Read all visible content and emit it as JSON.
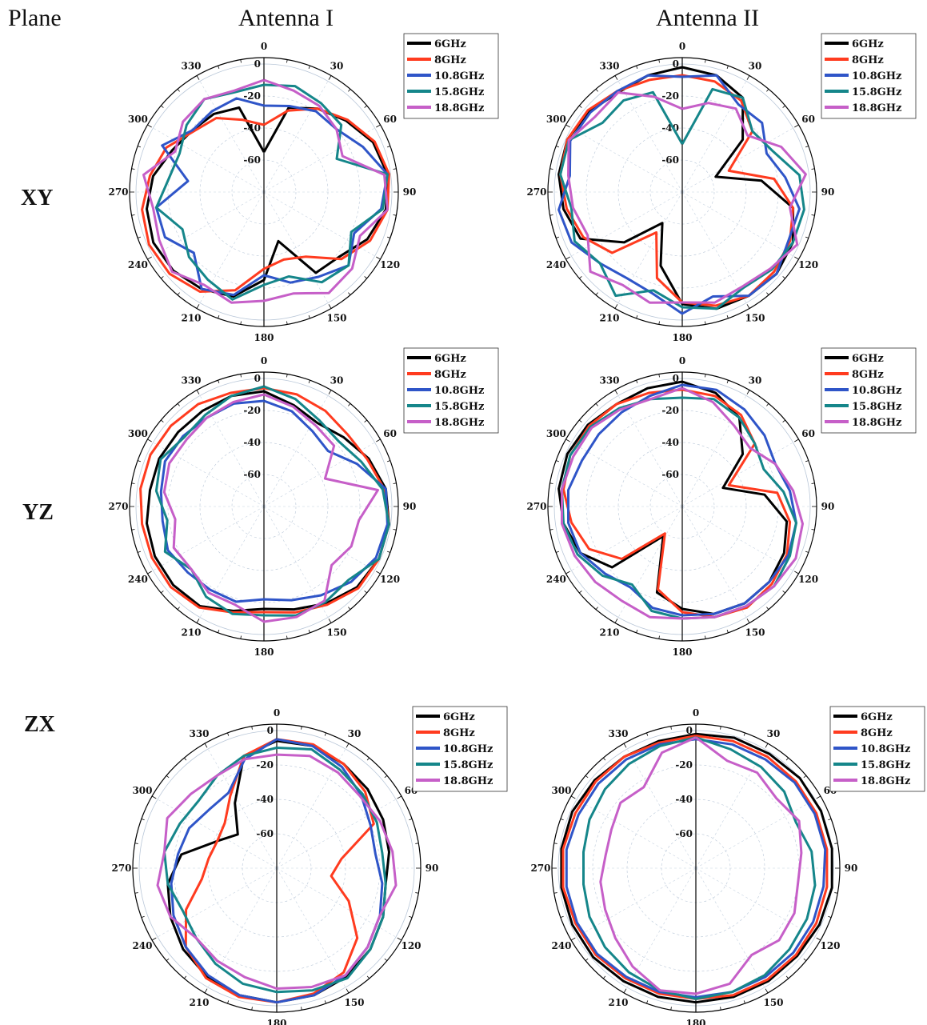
{
  "header": {
    "plane": "Plane",
    "antenna1": "Antenna I",
    "antenna2": "Antenna II"
  },
  "rows": [
    "XY",
    "YZ",
    "ZX"
  ],
  "legend": [
    "6GHz",
    "8GHz",
    "10.8GHz",
    "15.8GHz",
    "18.8GHz"
  ],
  "colors": [
    "#000000",
    "#ff3b1f",
    "#2f55c8",
    "#15868a",
    "#c65fc8"
  ],
  "chart_data": [
    {
      "type": "polar",
      "plane": "XY",
      "antenna": "Antenna I",
      "angle_ticks": [
        0,
        30,
        60,
        90,
        120,
        150,
        180,
        210,
        240,
        270,
        300,
        330
      ],
      "radial_ticks": [
        0,
        -20,
        -40,
        -60
      ],
      "rlim": [
        -60,
        0
      ],
      "series": [
        {
          "name": "6GHz",
          "values": [
            -55,
            -25,
            -18,
            -12,
            -5,
            -2,
            -3,
            -9,
            -18,
            -20,
            -48,
            -25,
            -12,
            -8,
            -5,
            -4,
            -6,
            -10,
            -17,
            -21,
            -22,
            -25
          ]
        },
        {
          "name": "8GHz",
          "values": [
            -38,
            -27,
            -18,
            -11,
            -4,
            -1,
            -2,
            -7,
            -16,
            -32,
            -36,
            -32,
            -16,
            -6,
            -2,
            -1,
            -3,
            -8,
            -13,
            -22,
            -25,
            -33
          ]
        },
        {
          "name": "10.8GHz",
          "values": [
            -26,
            -24,
            -20,
            -20,
            -12,
            -2,
            -6,
            -18,
            -10,
            -17,
            -21,
            -28,
            -13,
            -8,
            -22,
            -12,
            -12,
            -32,
            -10,
            -21,
            -20,
            -19
          ]
        },
        {
          "name": "15.8GHz",
          "values": [
            -13,
            -11,
            -14,
            -16,
            -30,
            -2,
            -5,
            -20,
            -10,
            -13,
            -25,
            -22,
            -10,
            -15,
            -18,
            -24,
            -12,
            -20,
            -22,
            -16,
            -11,
            -15
          ]
        },
        {
          "name": "18.8GHz",
          "values": [
            -10,
            -14,
            -16,
            -20,
            -26,
            -4,
            -2,
            -14,
            -7,
            -5,
            -14,
            -12,
            -8,
            -11,
            -4,
            -8,
            -10,
            -4,
            -19,
            -13,
            -11,
            -14
          ]
        }
      ]
    },
    {
      "type": "polar",
      "plane": "XY",
      "antenna": "Antenna II",
      "angle_ticks": [
        0,
        30,
        60,
        90,
        120,
        150,
        180,
        210,
        240,
        270,
        300,
        330
      ],
      "radial_ticks": [
        0,
        -20,
        -40,
        -60
      ],
      "rlim": [
        -60,
        0
      ],
      "series": [
        {
          "name": "6GHz",
          "values": [
            -2,
            -4,
            -10,
            -30,
            -57,
            -30,
            -10,
            -4,
            -2,
            -3,
            -4,
            -10,
            -32,
            -57,
            -32,
            -10,
            -5,
            -2,
            -1,
            -3,
            -6,
            -4
          ]
        },
        {
          "name": "8GHz",
          "values": [
            -7,
            -8,
            -12,
            -22,
            -48,
            -22,
            -10,
            -6,
            -4,
            -3,
            -6,
            -11,
            -24,
            -50,
            -22,
            -12,
            -7,
            -3,
            -1,
            -2,
            -5,
            -7
          ]
        },
        {
          "name": "10.8GHz",
          "values": [
            -8,
            -4,
            -15,
            -14,
            -22,
            -15,
            -6,
            -7,
            -2,
            -3,
            -12,
            -4,
            -14,
            -16,
            -12,
            -4,
            -2,
            -9,
            -3,
            -4,
            -5,
            -4
          ]
        },
        {
          "name": "15.8GHz",
          "values": [
            -50,
            -13,
            -10,
            -22,
            -18,
            -6,
            -3,
            -4,
            -6,
            -9,
            -4,
            -8,
            -16,
            -3,
            -12,
            -6,
            -10,
            -3,
            -2,
            -14,
            -12,
            -15
          ]
        },
        {
          "name": "18.8GHz",
          "values": [
            -28,
            -22,
            -18,
            -26,
            -12,
            -2,
            -12,
            -1,
            -7,
            -10,
            -8,
            -11,
            -8,
            -11,
            -4,
            -15,
            -11,
            -8,
            -2,
            -8,
            -6,
            -18
          ]
        }
      ]
    },
    {
      "type": "polar",
      "plane": "YZ",
      "antenna": "Antenna I",
      "angle_ticks": [
        0,
        30,
        60,
        90,
        120,
        150,
        180,
        210,
        240,
        270,
        300,
        330
      ],
      "radial_ticks": [
        0,
        -20,
        -40,
        -60
      ],
      "rlim": [
        -60,
        0
      ],
      "series": [
        {
          "name": "6GHz",
          "values": [
            -8,
            -14,
            -18,
            -14,
            -8,
            -3,
            -1,
            -1,
            -3,
            -8,
            -13,
            -16,
            -12,
            -6,
            -5,
            -5,
            -6,
            -8,
            -8,
            -9,
            -9,
            -8
          ]
        },
        {
          "name": "8GHz",
          "values": [
            -6,
            -7,
            -9,
            -11,
            -9,
            -4,
            -1,
            -1,
            -2,
            -7,
            -11,
            -14,
            -11,
            -5,
            -3,
            -3,
            -3,
            -2,
            -2,
            -3,
            -4,
            -6
          ]
        },
        {
          "name": "10.8GHz",
          "values": [
            -14,
            -18,
            -24,
            -27,
            -16,
            -3,
            -2,
            -3,
            -8,
            -14,
            -19,
            -22,
            -18,
            -18,
            -17,
            -14,
            -16,
            -15,
            -12,
            -13,
            -14,
            -13
          ]
        },
        {
          "name": "15.8GHz",
          "values": [
            -5,
            -10,
            -16,
            -18,
            -13,
            -5,
            -1,
            -1,
            -10,
            -9,
            -9,
            -12,
            -10,
            -13,
            -20,
            -12,
            -19,
            -12,
            -9,
            -14,
            -12,
            -8
          ]
        },
        {
          "name": "18.8GHz",
          "values": [
            -10,
            -15,
            -20,
            -22,
            -38,
            -8,
            -20,
            -20,
            -24,
            -10,
            -8,
            -8,
            -16,
            -16,
            -20,
            -18,
            -24,
            -17,
            -15,
            -16,
            -14,
            -12
          ]
        }
      ]
    },
    {
      "type": "polar",
      "plane": "YZ",
      "antenna": "Antenna II",
      "angle_ticks": [
        0,
        30,
        60,
        90,
        120,
        150,
        180,
        210,
        240,
        270,
        300,
        330
      ],
      "radial_ticks": [
        0,
        -20,
        -40,
        -60
      ],
      "rlim": [
        -60,
        0
      ],
      "series": [
        {
          "name": "6GHz",
          "values": [
            -2,
            -6,
            -14,
            -30,
            -52,
            -28,
            -14,
            -10,
            -8,
            -8,
            -10,
            -16,
            -24,
            -58,
            -22,
            -10,
            -5,
            -2,
            -1,
            -2,
            -4,
            -3
          ]
        },
        {
          "name": "8GHz",
          "values": [
            -7,
            -8,
            -12,
            -20,
            -48,
            -20,
            -12,
            -8,
            -6,
            -5,
            -8,
            -14,
            -26,
            -60,
            -30,
            -16,
            -10,
            -5,
            -3,
            -3,
            -4,
            -6
          ]
        },
        {
          "name": "10.8GHz",
          "values": [
            -4,
            -4,
            -8,
            -12,
            -16,
            -12,
            -8,
            -7,
            -8,
            -8,
            -10,
            -12,
            -14,
            -20,
            -16,
            -10,
            -8,
            -8,
            -11,
            -11,
            -10,
            -8
          ]
        },
        {
          "name": "15.8GHz",
          "values": [
            -12,
            -10,
            -14,
            -20,
            -24,
            -16,
            -8,
            -6,
            -4,
            -6,
            -8,
            -10,
            -12,
            -22,
            -14,
            -8,
            -5,
            -4,
            -3,
            -4,
            -7,
            -10
          ]
        },
        {
          "name": "18.8GHz",
          "values": [
            -6,
            -12,
            -20,
            -24,
            -16,
            -10,
            -4,
            -2,
            -4,
            -6,
            -8,
            -10,
            -8,
            -10,
            -8,
            -6,
            -4,
            -4,
            -5,
            -5,
            -8,
            -10
          ]
        }
      ]
    },
    {
      "type": "polar",
      "plane": "ZX",
      "antenna": "Antenna I",
      "angle_ticks": [
        0,
        30,
        60,
        90,
        120,
        150,
        180,
        210,
        240,
        270,
        300,
        330
      ],
      "radial_ticks": [
        0,
        -20,
        -40,
        -60
      ],
      "rlim": [
        -60,
        0
      ],
      "series": [
        {
          "name": "6GHz",
          "values": [
            -6,
            -6,
            -8,
            -10,
            -12,
            -14,
            -16,
            -12,
            -8,
            -5,
            -3,
            -2,
            -3,
            -5,
            -8,
            -12,
            -16,
            -24,
            -42,
            -50,
            -35,
            -12
          ]
        },
        {
          "name": "8GHz",
          "values": [
            -5,
            -5,
            -8,
            -12,
            -18,
            -42,
            -48,
            -34,
            -18,
            -8,
            -4,
            -2,
            -2,
            -4,
            -10,
            -22,
            -36,
            -40,
            -42,
            -40,
            -30,
            -12
          ]
        },
        {
          "name": "10.8GHz",
          "values": [
            -5,
            -6,
            -10,
            -15,
            -20,
            -22,
            -18,
            -14,
            -10,
            -6,
            -3,
            -2,
            -3,
            -6,
            -10,
            -14,
            -18,
            -22,
            -24,
            -28,
            -28,
            -14
          ]
        },
        {
          "name": "15.8GHz",
          "values": [
            -10,
            -8,
            -12,
            -14,
            -16,
            -18,
            -16,
            -12,
            -8,
            -4,
            -6,
            -8,
            -10,
            -14,
            -18,
            -20,
            -16,
            -14,
            -18,
            -20,
            -16,
            -12
          ]
        },
        {
          "name": "18.8GHz",
          "values": [
            -14,
            -12,
            -14,
            -16,
            -14,
            -12,
            -10,
            -14,
            -10,
            -6,
            -8,
            -10,
            -14,
            -16,
            -18,
            -12,
            -10,
            -14,
            -10,
            -14,
            -16,
            -14
          ]
        }
      ]
    },
    {
      "type": "polar",
      "plane": "ZX",
      "antenna": "Antenna II",
      "angle_ticks": [
        0,
        30,
        60,
        90,
        120,
        150,
        180,
        210,
        240,
        270,
        300,
        330
      ],
      "radial_ticks": [
        0,
        -20,
        -40,
        -60
      ],
      "rlim": [
        -60,
        0
      ],
      "series": [
        {
          "name": "6GHz",
          "values": [
            -2,
            -1,
            -1,
            0,
            0,
            0,
            0,
            -1,
            -2,
            -2,
            -2,
            -2,
            -2,
            -2,
            -1,
            -1,
            -1,
            -1,
            -1,
            -2,
            -3,
            -3
          ]
        },
        {
          "name": "8GHz",
          "values": [
            -3,
            -3,
            -3,
            -3,
            -3,
            -3,
            -3,
            -3,
            -3,
            -3,
            -3,
            -4,
            -4,
            -4,
            -3,
            -3,
            -2,
            -2,
            -3,
            -3,
            -3,
            -4
          ]
        },
        {
          "name": "10.8GHz",
          "values": [
            -5,
            -5,
            -5,
            -4,
            -4,
            -4,
            -5,
            -5,
            -5,
            -5,
            -5,
            -5,
            -5,
            -5,
            -4,
            -4,
            -4,
            -4,
            -5,
            -5,
            -5,
            -5
          ]
        },
        {
          "name": "15.8GHz",
          "values": [
            -4,
            -8,
            -10,
            -12,
            -16,
            -12,
            -10,
            -9,
            -8,
            -6,
            -5,
            -4,
            -6,
            -8,
            -10,
            -12,
            -14,
            -14,
            -12,
            -10,
            -8,
            -6
          ]
        },
        {
          "name": "18.8GHz",
          "values": [
            -4,
            -15,
            -14,
            -18,
            -14,
            -18,
            -20,
            -17,
            -16,
            -20,
            -10,
            -7,
            -6,
            -12,
            -18,
            -22,
            -24,
            -27,
            -26,
            -22,
            -24,
            -10
          ]
        }
      ]
    }
  ]
}
